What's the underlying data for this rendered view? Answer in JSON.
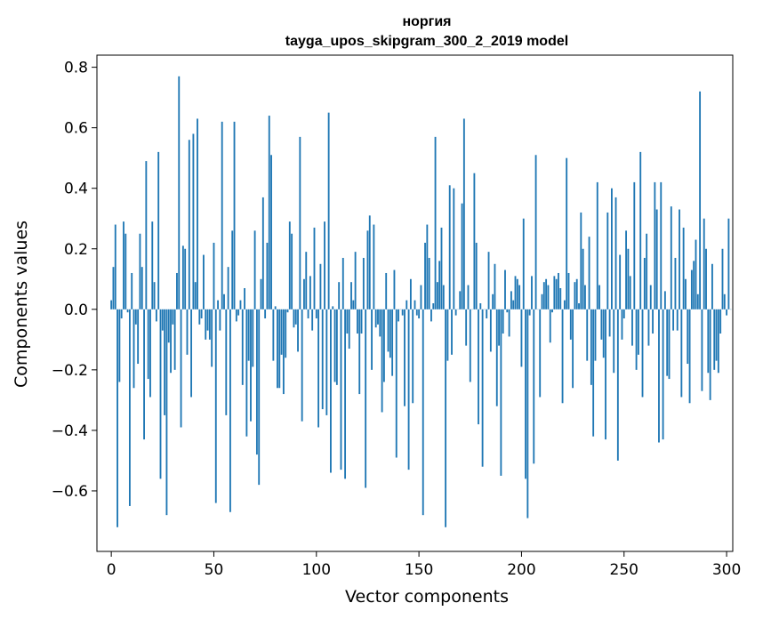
{
  "chart_data": {
    "type": "bar",
    "title": "норгия",
    "subtitle": "tayga_upos_skipgram_300_2_2019 model",
    "xlabel": "Vector components",
    "ylabel": "Components values",
    "xlim": [
      -7,
      303
    ],
    "ylim": [
      -0.8,
      0.84
    ],
    "xticks": [
      0,
      50,
      100,
      150,
      200,
      250,
      300
    ],
    "xtick_labels": [
      "0",
      "50",
      "100",
      "150",
      "200",
      "250",
      "300"
    ],
    "yticks": [
      -0.6,
      -0.4,
      -0.2,
      0.0,
      0.2,
      0.4,
      0.6,
      0.8
    ],
    "ytick_labels": [
      "−0.6",
      "−0.4",
      "−0.2",
      "0.0",
      "0.2",
      "0.4",
      "0.6",
      "0.8"
    ],
    "bar_color": "#1f77b4",
    "grid": false,
    "values": [
      0.03,
      0.14,
      0.28,
      -0.72,
      -0.24,
      -0.03,
      0.29,
      0.25,
      -0.01,
      -0.65,
      0.12,
      -0.26,
      -0.05,
      -0.18,
      0.25,
      0.14,
      -0.43,
      0.49,
      -0.23,
      -0.29,
      0.29,
      0.09,
      -0.04,
      0.52,
      -0.56,
      -0.07,
      -0.35,
      -0.68,
      -0.11,
      -0.21,
      -0.05,
      -0.2,
      0.12,
      0.77,
      -0.39,
      0.21,
      0.2,
      -0.15,
      0.56,
      -0.29,
      0.58,
      0.09,
      0.63,
      -0.05,
      -0.03,
      0.18,
      -0.1,
      -0.07,
      -0.1,
      -0.19,
      0.22,
      -0.64,
      0.03,
      -0.07,
      0.62,
      0.05,
      -0.35,
      0.14,
      -0.67,
      0.26,
      0.62,
      -0.04,
      -0.02,
      0.03,
      -0.25,
      0.07,
      -0.42,
      -0.17,
      -0.37,
      -0.19,
      0.26,
      -0.48,
      -0.58,
      0.1,
      0.37,
      -0.03,
      0.22,
      0.64,
      0.51,
      -0.17,
      0.01,
      -0.26,
      -0.26,
      -0.15,
      -0.28,
      -0.16,
      -0.01,
      0.29,
      0.25,
      -0.06,
      -0.05,
      -0.14,
      0.57,
      -0.37,
      0.1,
      0.19,
      -0.03,
      0.11,
      -0.07,
      0.27,
      -0.03,
      -0.39,
      0.15,
      -0.33,
      0.29,
      -0.35,
      0.65,
      -0.54,
      0.01,
      -0.24,
      -0.25,
      0.09,
      -0.53,
      0.17,
      -0.56,
      -0.08,
      -0.13,
      0.09,
      0.03,
      0.19,
      -0.08,
      -0.28,
      -0.08,
      0.17,
      -0.59,
      0.26,
      0.31,
      -0.2,
      0.28,
      -0.06,
      -0.05,
      -0.09,
      -0.34,
      -0.24,
      0.12,
      -0.14,
      -0.16,
      -0.22,
      0.13,
      -0.49,
      -0.04,
      0.0,
      -0.02,
      -0.32,
      0.03,
      -0.53,
      0.1,
      -0.31,
      0.03,
      -0.02,
      -0.03,
      0.08,
      -0.68,
      0.22,
      0.28,
      0.17,
      -0.04,
      0.02,
      0.57,
      0.09,
      0.16,
      0.27,
      0.08,
      -0.72,
      -0.17,
      0.41,
      -0.15,
      0.4,
      -0.02,
      0.0,
      0.06,
      0.35,
      0.63,
      -0.12,
      0.08,
      -0.24,
      0.0,
      0.45,
      0.22,
      -0.38,
      0.02,
      -0.52,
      0.0,
      -0.03,
      0.19,
      -0.14,
      0.05,
      0.15,
      -0.32,
      -0.12,
      -0.55,
      -0.08,
      0.13,
      -0.01,
      -0.09,
      0.06,
      0.03,
      0.11,
      0.1,
      0.08,
      -0.19,
      0.3,
      -0.56,
      -0.69,
      -0.02,
      0.11,
      -0.51,
      0.51,
      0.0,
      -0.29,
      0.05,
      0.09,
      0.1,
      0.08,
      -0.11,
      -0.01,
      0.11,
      0.1,
      0.12,
      0.07,
      -0.31,
      0.03,
      0.5,
      0.12,
      -0.1,
      -0.26,
      0.09,
      0.1,
      0.02,
      0.32,
      0.2,
      0.08,
      -0.17,
      0.24,
      -0.25,
      -0.42,
      -0.17,
      0.42,
      0.08,
      -0.1,
      -0.16,
      -0.43,
      0.32,
      -0.09,
      0.4,
      -0.21,
      0.37,
      -0.5,
      0.18,
      -0.1,
      -0.03,
      0.26,
      0.2,
      0.11,
      -0.12,
      0.42,
      -0.2,
      -0.15,
      0.52,
      -0.29,
      0.17,
      0.25,
      -0.12,
      0.08,
      -0.08,
      0.42,
      0.33,
      -0.44,
      0.42,
      -0.43,
      0.06,
      -0.22,
      -0.23,
      0.34,
      -0.07,
      0.17,
      -0.07,
      0.33,
      -0.29,
      0.27,
      0.1,
      -0.18,
      -0.31,
      0.13,
      0.16,
      0.23,
      0.05,
      0.72,
      -0.27,
      0.3,
      0.2,
      -0.21,
      -0.3,
      0.15,
      -0.2,
      -0.17,
      -0.21,
      -0.08,
      0.2,
      0.05,
      -0.02,
      0.3,
      0.0
    ]
  }
}
